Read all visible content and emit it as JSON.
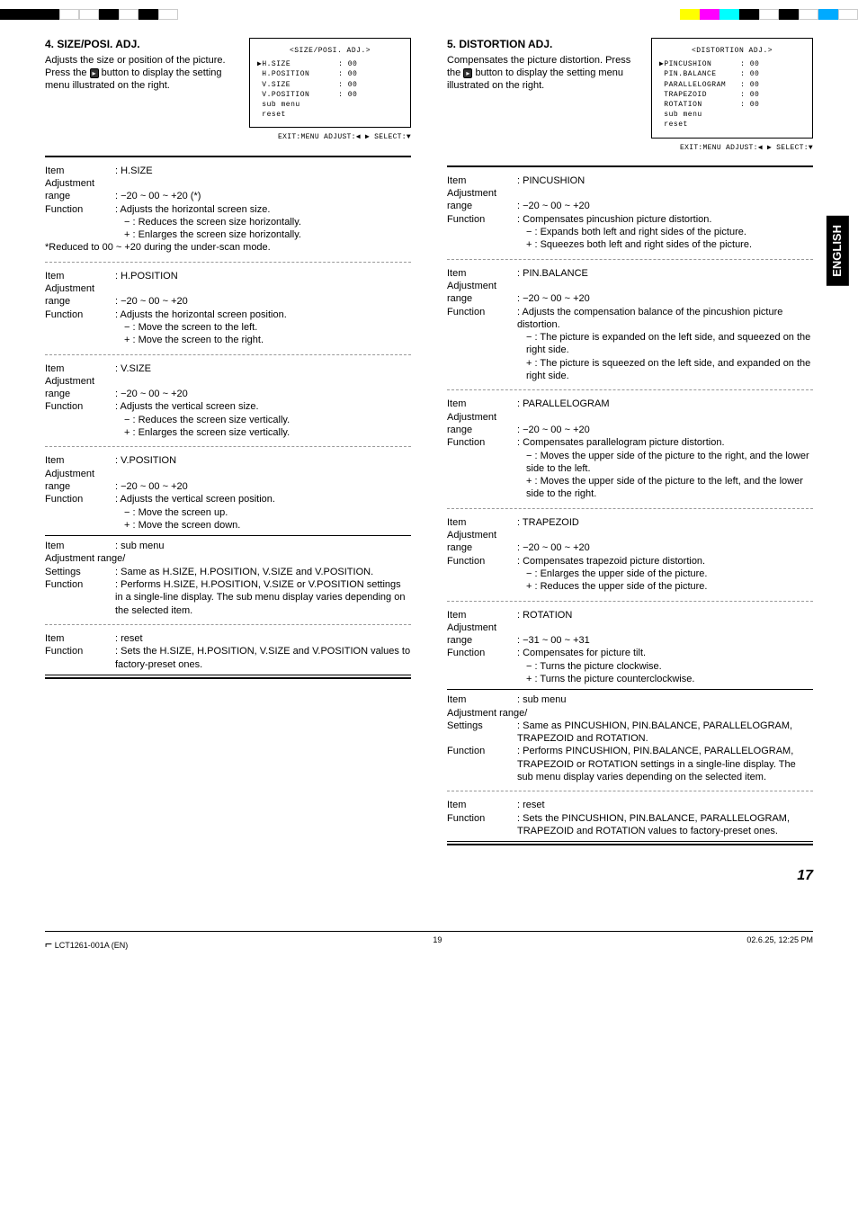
{
  "topBars": {
    "left": [
      "#000",
      "#000",
      "#000",
      "#fff",
      "#fff",
      "#000",
      "#fff",
      "#000",
      "#fff"
    ],
    "right": [
      "#ff0",
      "#f0f",
      "#0ff",
      "#000",
      "#fff",
      "#000",
      "#fff",
      "#0af",
      "#fff"
    ]
  },
  "col1": {
    "sectionTitle": "4. SIZE/POSI. ADJ.",
    "sectionSub": "Adjusts the size or position of the picture. Press the",
    "sectionSub2": "button to display the setting menu illustrated on the right.",
    "osd": {
      "title": "<SIZE/POSI. ADJ.>",
      "lines": [
        "▶H.SIZE          : 00",
        " H.POSITION      : 00",
        " V.SIZE          : 00",
        " V.POSITION      : 00",
        " sub menu",
        " reset"
      ],
      "footer": "EXIT:MENU ADJUST:◀ ▶ SELECT:▼"
    },
    "items": [
      {
        "name": "H.SIZE",
        "range": "−20 ~ 00 ~ +20 (*)",
        "function": "Adjusts the horizontal screen size.",
        "details": [
          "− : Reduces the screen size horizontally.",
          "+ : Enlarges the screen size horizontally."
        ],
        "note": "*Reduced to 00 ~ +20 during the under-scan mode."
      },
      {
        "name": "H.POSITION",
        "range": "−20 ~ 00 ~ +20",
        "function": "Adjusts the horizontal screen position.",
        "details": [
          "− : Move the screen to the left.",
          "+ : Move the screen to the right."
        ]
      },
      {
        "name": "V.SIZE",
        "range": "−20 ~ 00 ~ +20",
        "function": "Adjusts the vertical screen size.",
        "details": [
          "− : Reduces the screen size vertically.",
          "+ : Enlarges the screen size vertically."
        ]
      },
      {
        "name": "V.POSITION",
        "range": "−20 ~ 00 ~ +20",
        "function": "Adjusts the vertical screen position.",
        "details": [
          "− : Move the screen up.",
          "+ : Move the screen down."
        ]
      }
    ],
    "submenu": {
      "name": "sub menu",
      "settingsLabel": "Settings",
      "settings": "Same as H.SIZE, H.POSITION, V.SIZE and V.POSITION.",
      "function": "Performs H.SIZE, H.POSITION, V.SIZE or V.POSITION settings in a single-line display. The sub menu display varies depending on the selected item."
    },
    "reset": {
      "name": "reset",
      "function": "Sets the H.SIZE, H.POSITION, V.SIZE and V.POSITION values to factory-preset ones."
    }
  },
  "col2": {
    "sectionTitle": "5. DISTORTION ADJ.",
    "sectionSub": "Compensates the picture distortion. Press the",
    "sectionSub2": "button to display the setting menu illustrated on the right.",
    "osd": {
      "title": "<DISTORTION ADJ.>",
      "lines": [
        "▶PINCUSHION      : 00",
        " PIN.BALANCE     : 00",
        " PARALLELOGRAM   : 00",
        " TRAPEZOID       : 00",
        " ROTATION        : 00",
        " sub menu",
        " reset"
      ],
      "footer": "EXIT:MENU ADJUST:◀ ▶ SELECT:▼"
    },
    "items": [
      {
        "name": "PINCUSHION",
        "range": "−20 ~ 00 ~ +20",
        "function": "Compensates pincushion picture distortion.",
        "details": [
          "− : Expands both left and right sides of the picture.",
          "+ : Squeezes both left and right sides of the picture."
        ]
      },
      {
        "name": "PIN.BALANCE",
        "range": "−20 ~ 00 ~ +20",
        "function": "Adjusts the compensation balance of the pincushion picture distortion.",
        "details": [
          "− : The picture is expanded on the left side, and squeezed on the right side.",
          "+ : The picture is squeezed on the left side, and expanded on the right side."
        ]
      },
      {
        "name": "PARALLELOGRAM",
        "range": "−20 ~ 00 ~ +20",
        "function": "Compensates parallelogram picture distortion.",
        "details": [
          "− : Moves the upper side of the picture to the right, and the lower side to the left.",
          "+ : Moves the upper side of the picture to the left, and the lower side to the right."
        ]
      },
      {
        "name": "TRAPEZOID",
        "range": "−20 ~ 00 ~ +20",
        "function": "Compensates trapezoid picture distortion.",
        "details": [
          "− : Enlarges the upper side of the picture.",
          "+ : Reduces the upper side of the picture."
        ]
      },
      {
        "name": "ROTATION",
        "range": "−31 ~ 00 ~ +31",
        "function": "Compensates for picture tilt.",
        "details": [
          "− : Turns the picture clockwise.",
          "+ : Turns the picture counterclockwise."
        ]
      }
    ],
    "submenu": {
      "name": "sub menu",
      "settingsLabel": "Settings",
      "settings": "Same as PINCUSHION, PIN.BALANCE, PARALLELOGRAM, TRAPEZOID and ROTATION.",
      "function": "Performs PINCUSHION, PIN.BALANCE, PARALLELOGRAM, TRAPEZOID or ROTATION settings in a single-line display. The sub menu display varies depending on the selected item."
    },
    "reset": {
      "name": "reset",
      "function": "Sets the PINCUSHION, PIN.BALANCE, PARALLELOGRAM, TRAPEZOID and ROTATION values to factory-preset ones."
    }
  },
  "labels": {
    "item": "Item",
    "adjRange": "Adjustment range",
    "adjRangeSlash": "Adjustment range/",
    "function": "Function",
    "colon": ": "
  },
  "tab": "ENGLISH",
  "pageNum": "17",
  "footerLeft": "LCT1261-001A (EN)",
  "footerMid": "19",
  "footerRight": "02.6.25, 12:25 PM"
}
